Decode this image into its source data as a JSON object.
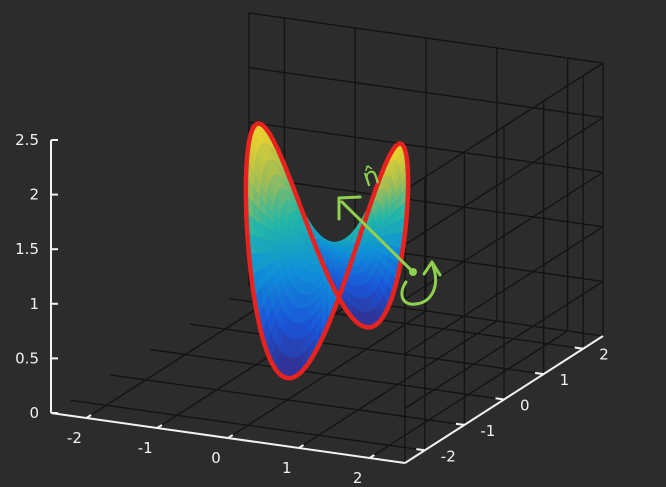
{
  "chart_data": {
    "type": "surface",
    "title": "",
    "xlabel": "",
    "ylabel": "",
    "zlabel": "",
    "xlim": [
      -2.5,
      2.5
    ],
    "ylim": [
      -2.5,
      2.5
    ],
    "zlim": [
      0,
      2.5
    ],
    "x_ticks": [
      "-2",
      "-1",
      "0",
      "1",
      "2"
    ],
    "y_ticks": [
      "-2",
      "-1",
      "0",
      "1",
      "2"
    ],
    "z_ticks": [
      "0",
      "0.5",
      "1",
      "1.5",
      "2",
      "2.5"
    ],
    "grid": true,
    "surface": {
      "description": "saddle surface over the unit disk, boundary curve z = 1.2 + cos(2t)",
      "colormap": "parula",
      "boundary_color": "#e8231f"
    },
    "annotation": {
      "text": "n̂",
      "color": "#8fd14f",
      "meaning": "hand-drawn normal vector with counter-clockwise circulation arrow"
    }
  },
  "colors": {
    "background": "#2c2c2c",
    "grid": "#141414",
    "axis": "#f2f2f2",
    "boundary": "#e8231f",
    "annotation": "#8fd14f"
  }
}
